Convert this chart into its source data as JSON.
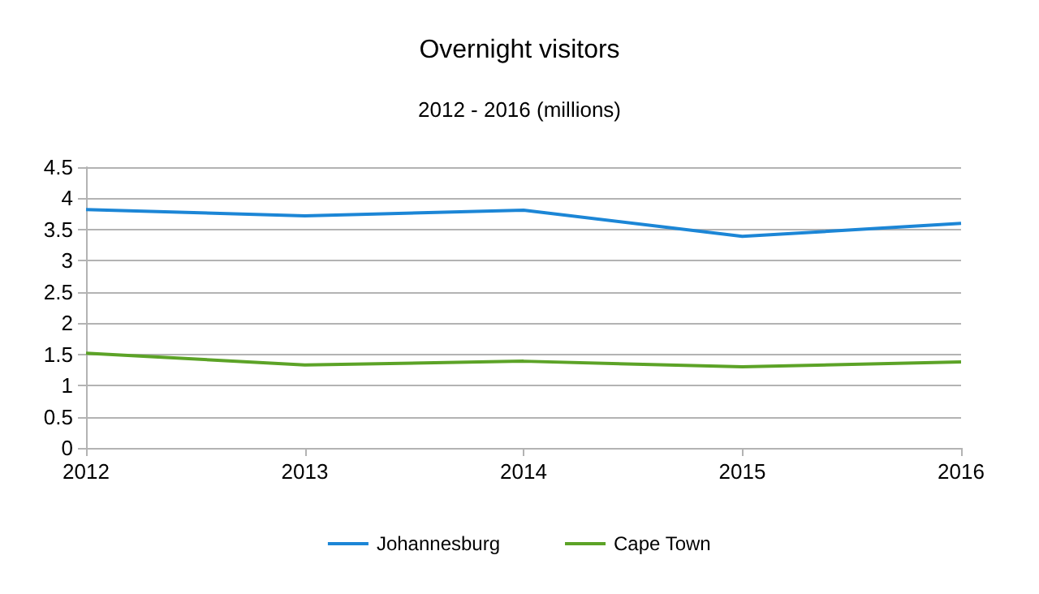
{
  "chart_data": {
    "type": "line",
    "title": "Overnight visitors",
    "subtitle": "2012 - 2016 (millions)",
    "categories": [
      "2012",
      "2013",
      "2014",
      "2015",
      "2016"
    ],
    "series": [
      {
        "name": "Johannesburg",
        "color": "#1c86d6",
        "values": [
          3.82,
          3.72,
          3.81,
          3.39,
          3.6
        ]
      },
      {
        "name": "Cape Town",
        "color": "#5ca327",
        "values": [
          1.52,
          1.33,
          1.39,
          1.3,
          1.38
        ]
      }
    ],
    "ylim": [
      0,
      4.5
    ],
    "yticks": [
      0,
      0.5,
      1,
      1.5,
      2,
      2.5,
      3,
      3.5,
      4,
      4.5
    ],
    "grid": "y",
    "legend": "bottom",
    "marker": "none"
  }
}
